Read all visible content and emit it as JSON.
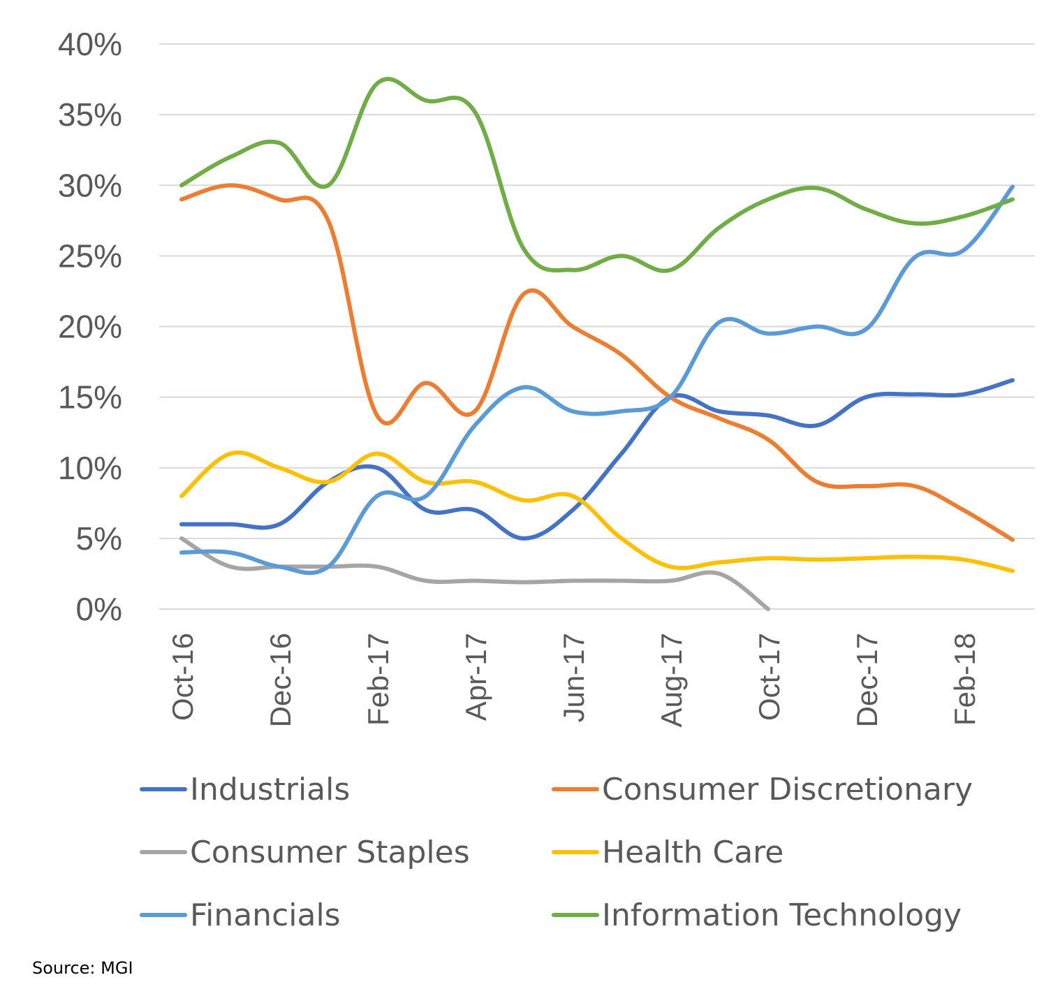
{
  "chart_data": {
    "type": "line",
    "title": "",
    "xlabel": "",
    "ylabel": "",
    "ylim": [
      0,
      40
    ],
    "y_ticks": [
      "0%",
      "5%",
      "10%",
      "15%",
      "20%",
      "25%",
      "30%",
      "35%",
      "40%"
    ],
    "x_ticks": [
      "Oct-16",
      "Dec-16",
      "Feb-17",
      "Apr-17",
      "Jun-17",
      "Aug-17",
      "Oct-17",
      "Dec-17",
      "Feb-18"
    ],
    "x": [
      "Oct-16",
      "Nov-16",
      "Dec-16",
      "Jan-17",
      "Feb-17",
      "Mar-17",
      "Apr-17",
      "May-17",
      "Jun-17",
      "Jul-17",
      "Aug-17",
      "Sep-17",
      "Oct-17",
      "Nov-17",
      "Dec-17",
      "Jan-18",
      "Feb-18",
      "Mar-18"
    ],
    "grid": true,
    "legend_position": "bottom",
    "series": [
      {
        "name": "Industrials",
        "color": "#4472c4",
        "values": [
          6,
          6,
          6,
          9,
          10,
          7,
          7,
          5,
          7,
          11,
          15,
          14,
          13.7,
          13,
          15,
          15.2,
          15.2,
          16.2
        ]
      },
      {
        "name": "Consumer Discretionary",
        "color": "#ed7d31",
        "values": [
          29,
          30,
          29,
          27.5,
          13.7,
          16,
          14,
          22.3,
          20,
          18,
          15,
          13.5,
          12,
          9,
          8.7,
          8.7,
          7,
          4.9
        ]
      },
      {
        "name": "Consumer Staples",
        "color": "#a5a5a5",
        "values": [
          5,
          3,
          3,
          3,
          3,
          2,
          2,
          1.9,
          2,
          2,
          2,
          2.5,
          0,
          null,
          null,
          null,
          null,
          null
        ]
      },
      {
        "name": "Health Care",
        "color": "#ffc000",
        "values": [
          8,
          11,
          10,
          9,
          11,
          9,
          9,
          7.7,
          8,
          5,
          3,
          3.3,
          3.6,
          3.5,
          3.6,
          3.7,
          3.5,
          2.7
        ]
      },
      {
        "name": "Financials",
        "color": "#5b9bd5",
        "values": [
          4,
          4,
          3,
          3,
          8,
          8,
          13,
          15.7,
          14,
          14,
          15,
          20.3,
          19.5,
          20,
          19.8,
          24.9,
          25.4,
          29.9
        ]
      },
      {
        "name": "Information Technology",
        "color": "#70ad47",
        "values": [
          30,
          32,
          33,
          30,
          37.2,
          36,
          35.2,
          25.5,
          24,
          25,
          24,
          27,
          29,
          29.8,
          28.3,
          27.3,
          27.8,
          29
        ]
      }
    ],
    "source": "Source: MGI"
  }
}
